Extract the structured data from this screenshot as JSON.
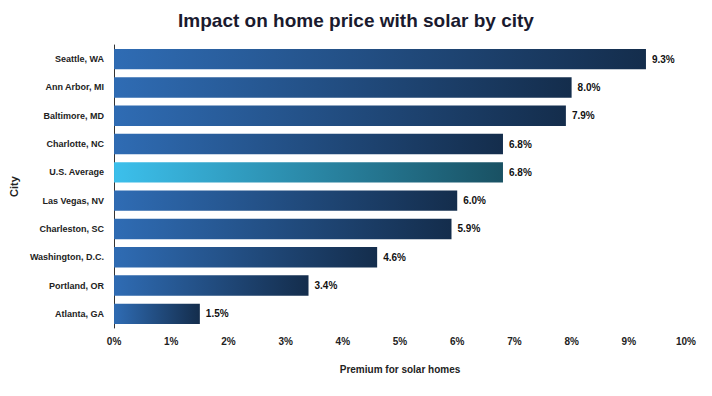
{
  "chart_data": {
    "type": "bar",
    "orientation": "horizontal",
    "title": "Impact on home price with solar by city",
    "x_label": "Premium for solar homes",
    "y_label": "City",
    "categories": [
      "Seattle, WA",
      "Ann Arbor, MI",
      "Baltimore, MD",
      "Charlotte, NC",
      "U.S. Average",
      "Las Vegas, NV",
      "Charleston, SC",
      "Washington, D.C.",
      "Portland, OR",
      "Atlanta, GA"
    ],
    "values": [
      9.3,
      8.0,
      7.9,
      6.8,
      6.8,
      6.0,
      5.9,
      4.6,
      3.4,
      1.5
    ],
    "value_labels": [
      "9.3%",
      "8.0%",
      "7.9%",
      "6.8%",
      "6.8%",
      "6.0%",
      "5.9%",
      "4.6%",
      "3.4%",
      "1.5%"
    ],
    "colors": [
      "#2f6cb4",
      "#2f6cb4",
      "#2f6cb4",
      "#2f6cb4",
      "#3cc0ec",
      "#2f6cb4",
      "#2f6cb4",
      "#2f6cb4",
      "#2f6cb4",
      "#2f6cb4"
    ],
    "data_labels": true,
    "xlim": [
      0,
      10
    ],
    "xticks": [
      {
        "value": 0,
        "label": "0%"
      },
      {
        "value": 1,
        "label": "1%"
      },
      {
        "value": 2,
        "label": "2%"
      },
      {
        "value": 3,
        "label": "3%"
      },
      {
        "value": 4,
        "label": "4%"
      },
      {
        "value": 5,
        "label": "5%"
      },
      {
        "value": 6,
        "label": "6%"
      },
      {
        "value": 7,
        "label": "7%"
      },
      {
        "value": 8,
        "label": "8%"
      },
      {
        "value": 9,
        "label": "9%"
      },
      {
        "value": 10,
        "label": "10%"
      }
    ],
    "grid": false
  }
}
